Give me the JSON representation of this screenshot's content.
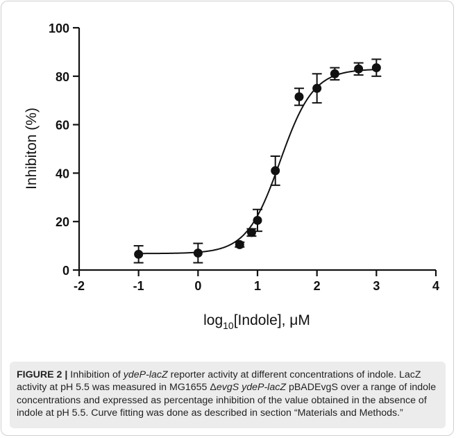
{
  "chart_data": {
    "type": "scatter",
    "x_label_main": "log",
    "x_label_sub": "10",
    "x_label_rest": "[Indole], μM",
    "ylabel": "Inhibiton (%)",
    "xlim": [
      -2,
      4
    ],
    "ylim": [
      0,
      100
    ],
    "x_ticks": [
      "-2",
      "-1",
      "0",
      "1",
      "2",
      "3",
      "4"
    ],
    "y_ticks": [
      "0",
      "20",
      "40",
      "60",
      "80",
      "100"
    ],
    "grid": false,
    "series": [
      {
        "points": [
          {
            "x": -1,
            "y": 6.5,
            "err": 3.5
          },
          {
            "x": 0,
            "y": 7,
            "err": 4
          },
          {
            "x": 0.7,
            "y": 10.5,
            "err": 1
          },
          {
            "x": 0.9,
            "y": 15.5,
            "err": 1.5
          },
          {
            "x": 1,
            "y": 20.5,
            "err": 4.5
          },
          {
            "x": 1.3,
            "y": 41,
            "err": 6
          },
          {
            "x": 1.7,
            "y": 71.5,
            "err": 3.5
          },
          {
            "x": 2,
            "y": 75,
            "err": 6
          },
          {
            "x": 2.3,
            "y": 81,
            "err": 2.5
          },
          {
            "x": 2.7,
            "y": 83,
            "err": 2.5
          },
          {
            "x": 3,
            "y": 83.5,
            "err": 3.5
          }
        ]
      }
    ],
    "fit_curve": {
      "bottom": 6.8,
      "top": 83,
      "logEC50": 1.38,
      "hill": 1.55
    }
  },
  "caption": {
    "figure_label": "FIGURE 2 |",
    "part1": " Inhibition of ",
    "gene1": "ydeP-lacZ",
    "part2": " reporter activity at different concentrations of indole. LacZ activity at pH 5.5 was measured in MG1655 Δ",
    "gene2": "evgS ydeP-lacZ",
    "part3": " pBADEvgS over a range of indole concentrations and expressed as percentage inhibition of the value obtained in the absence of indole at pH 5.5. Curve fitting was done as described in section “Materials and Methods.”"
  }
}
